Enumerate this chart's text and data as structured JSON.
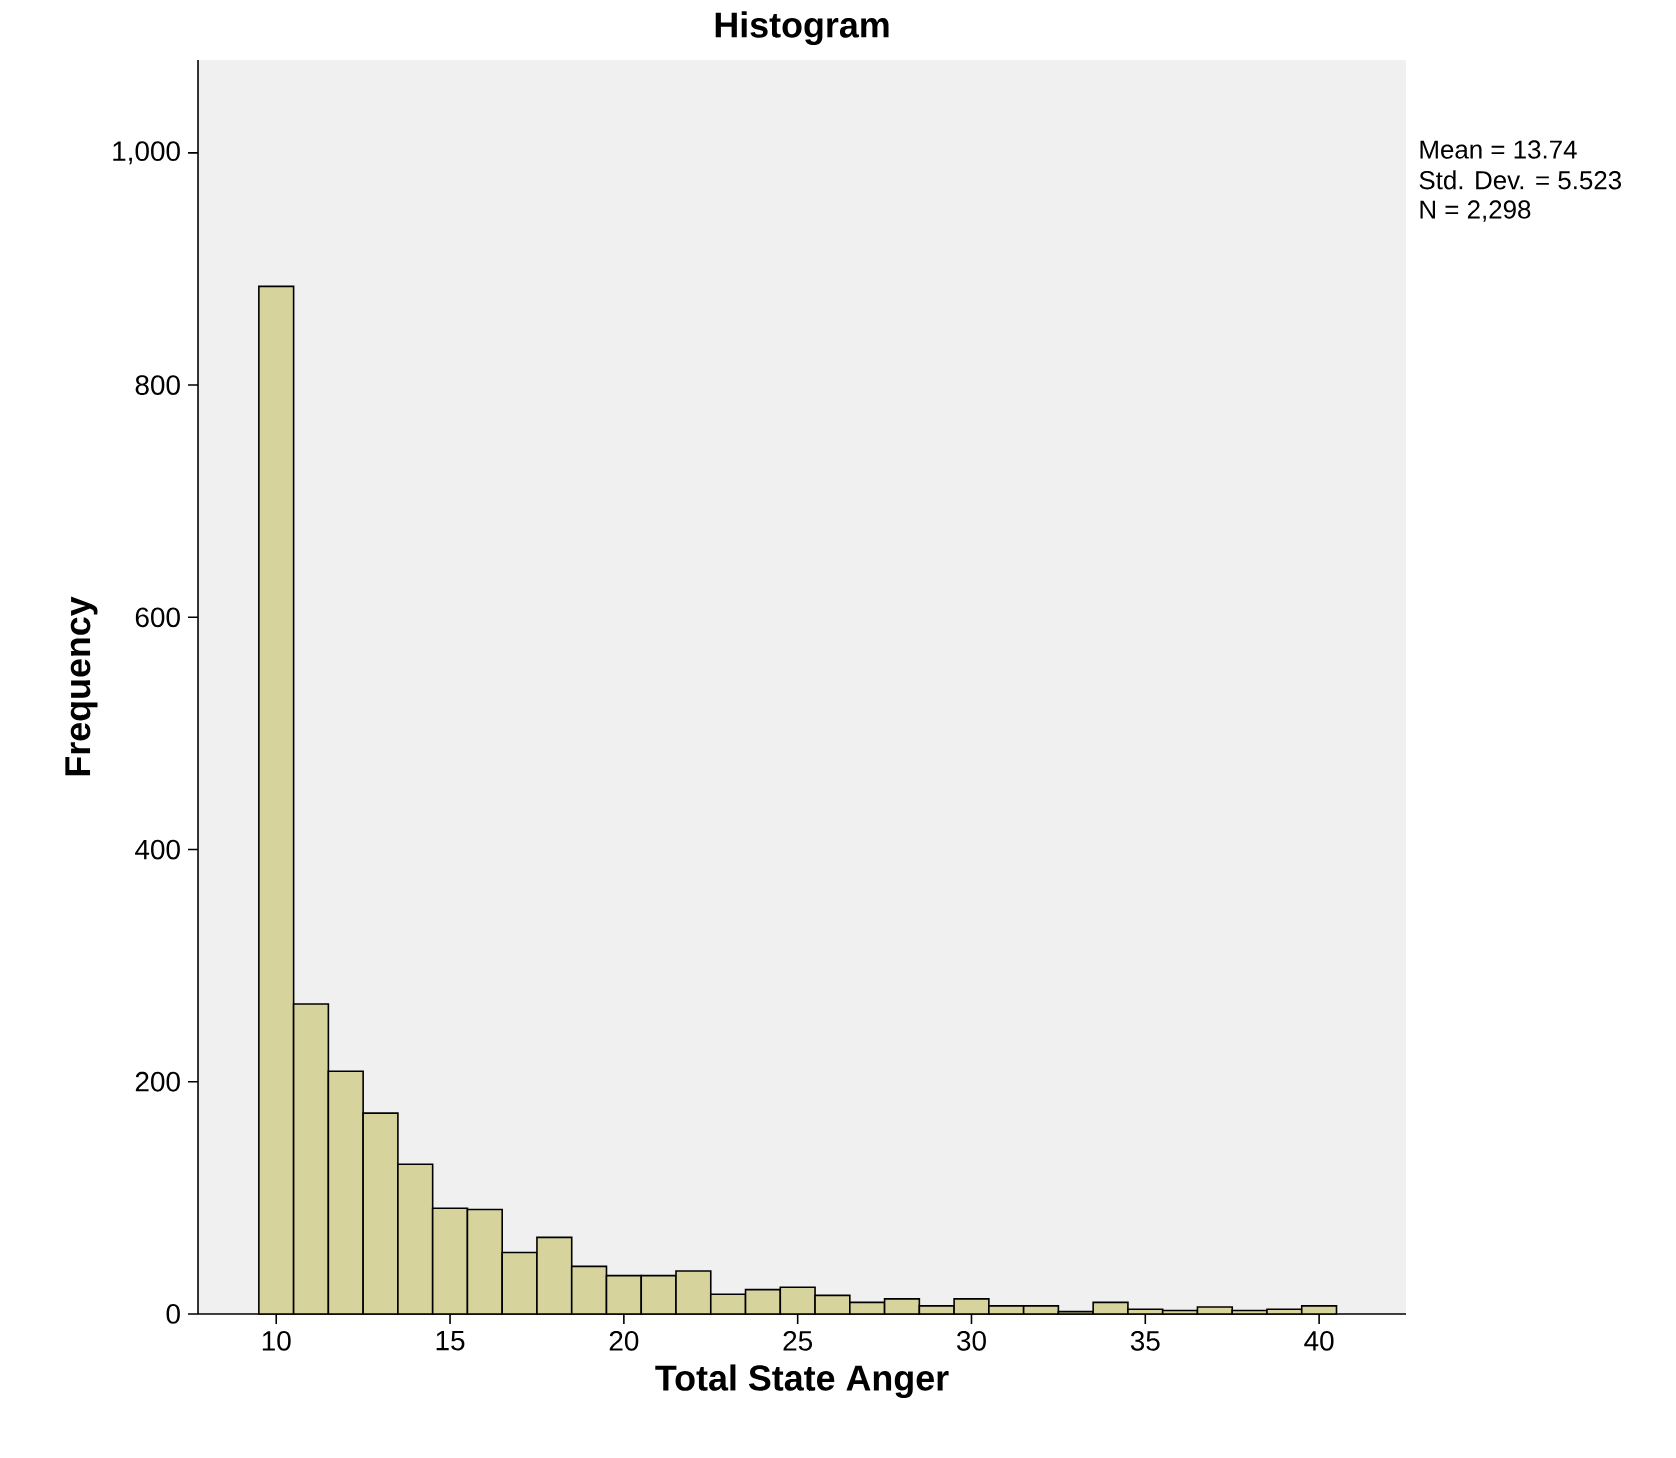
{
  "chart_data": {
    "type": "histogram",
    "title": "Histogram",
    "xlabel": "Total State Anger",
    "ylabel": "Frequency",
    "bins": [
      9.5,
      10.5,
      11.5,
      12.5,
      13.5,
      14.5,
      15.5,
      16.5,
      17.5,
      18.5,
      19.5,
      20.5,
      21.5,
      22.5,
      23.5,
      24.5,
      25.5,
      26.5,
      27.5,
      28.5,
      29.5,
      30.5,
      31.5,
      32.5,
      33.5,
      34.5,
      35.5,
      36.5,
      37.5,
      38.5,
      39.5,
      40.5
    ],
    "values": [
      885,
      267,
      209,
      173,
      129,
      91,
      90,
      53,
      66,
      41,
      33,
      33,
      37,
      17,
      21,
      23,
      16,
      10,
      13,
      7,
      13,
      7,
      7,
      2,
      10,
      4,
      3,
      6,
      3,
      4,
      7
    ],
    "color": "#d6d39c",
    "xlim": [
      7.75,
      42.5
    ],
    "ylim": [
      0,
      1080
    ],
    "xticks": [
      10,
      15,
      20,
      25,
      30,
      35,
      40
    ],
    "yticks": [
      0,
      200,
      400,
      600,
      800,
      {
        "value": 1000,
        "label": "1,000"
      }
    ],
    "annotations": [
      "Mean = 13.74",
      "Std. Dev. = 5.523",
      "N = 2,298"
    ]
  }
}
